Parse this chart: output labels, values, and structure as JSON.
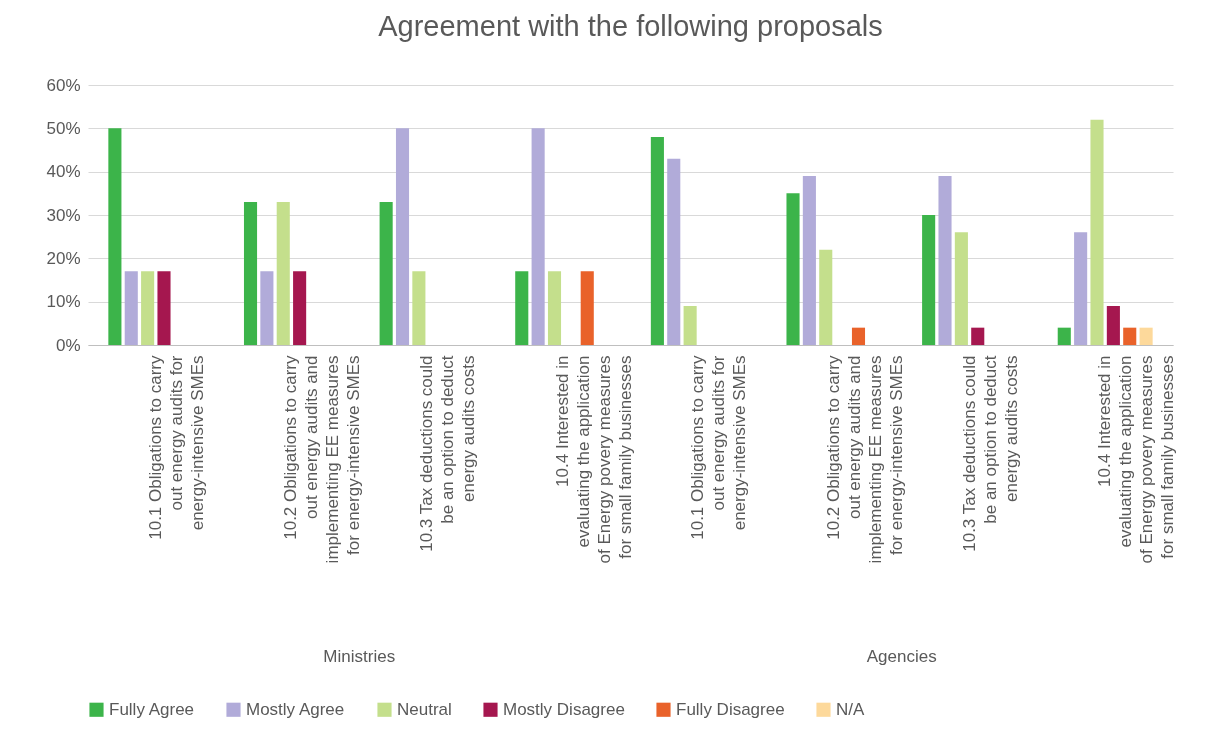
{
  "chart_data": {
    "type": "bar",
    "title": "Agreement with the following proposals",
    "categories": [
      "10.1 Obligations to carry out energy audits for energy-intensive SMEs",
      "10.2 Obligations to carry out energy audits and implementing EE measures for energy-intensive SMEs",
      "10.3 Tax deductions could be an option to deduct energy audits costs",
      "10.4 Interested in evaluating the application of Energy povery measures for small family businesses",
      "10.1 Obligations to carry out energy audits for energy-intensive SMEs",
      "10.2 Obligations to carry out energy audits and implementing EE measures for energy-intensive SMEs",
      "10.3 Tax deductions could be an option to deduct energy audits costs",
      "10.4 Interested in evaluating the application of Energy povery measures for small family businesses"
    ],
    "series": [
      {
        "name": "Fully Agree",
        "color": "#3cb44a",
        "values": [
          50,
          33,
          33,
          17,
          48,
          35,
          30,
          4
        ]
      },
      {
        "name": "Mostly Agree",
        "color": "#b1abd9",
        "values": [
          17,
          17,
          50,
          50,
          43,
          39,
          39,
          26
        ]
      },
      {
        "name": "Neutral",
        "color": "#c4df8c",
        "values": [
          17,
          33,
          17,
          17,
          9,
          22,
          26,
          52
        ]
      },
      {
        "name": "Mostly Disagree",
        "color": "#a5174f",
        "values": [
          17,
          17,
          null,
          null,
          null,
          null,
          4,
          9
        ]
      },
      {
        "name": "Fully Disagree",
        "color": "#e9622a",
        "values": [
          null,
          null,
          null,
          17,
          null,
          4,
          null,
          4
        ]
      },
      {
        "name": "N/A",
        "color": "#fdd99b",
        "values": [
          null,
          null,
          null,
          null,
          null,
          null,
          null,
          4
        ]
      }
    ],
    "annotations": [
      "Ministries",
      "Agencies"
    ],
    "ylim": [
      0,
      60
    ],
    "yticks": [
      {
        "value": 0,
        "label": "0%"
      },
      {
        "value": 10,
        "label": "10%"
      },
      {
        "value": 20,
        "label": "20%"
      },
      {
        "value": 30,
        "label": "30%"
      },
      {
        "value": 40,
        "label": "40%"
      },
      {
        "value": 50,
        "label": "50%"
      },
      {
        "value": 60,
        "label": "60%"
      }
    ],
    "grid": "y",
    "legend": "bottom"
  }
}
